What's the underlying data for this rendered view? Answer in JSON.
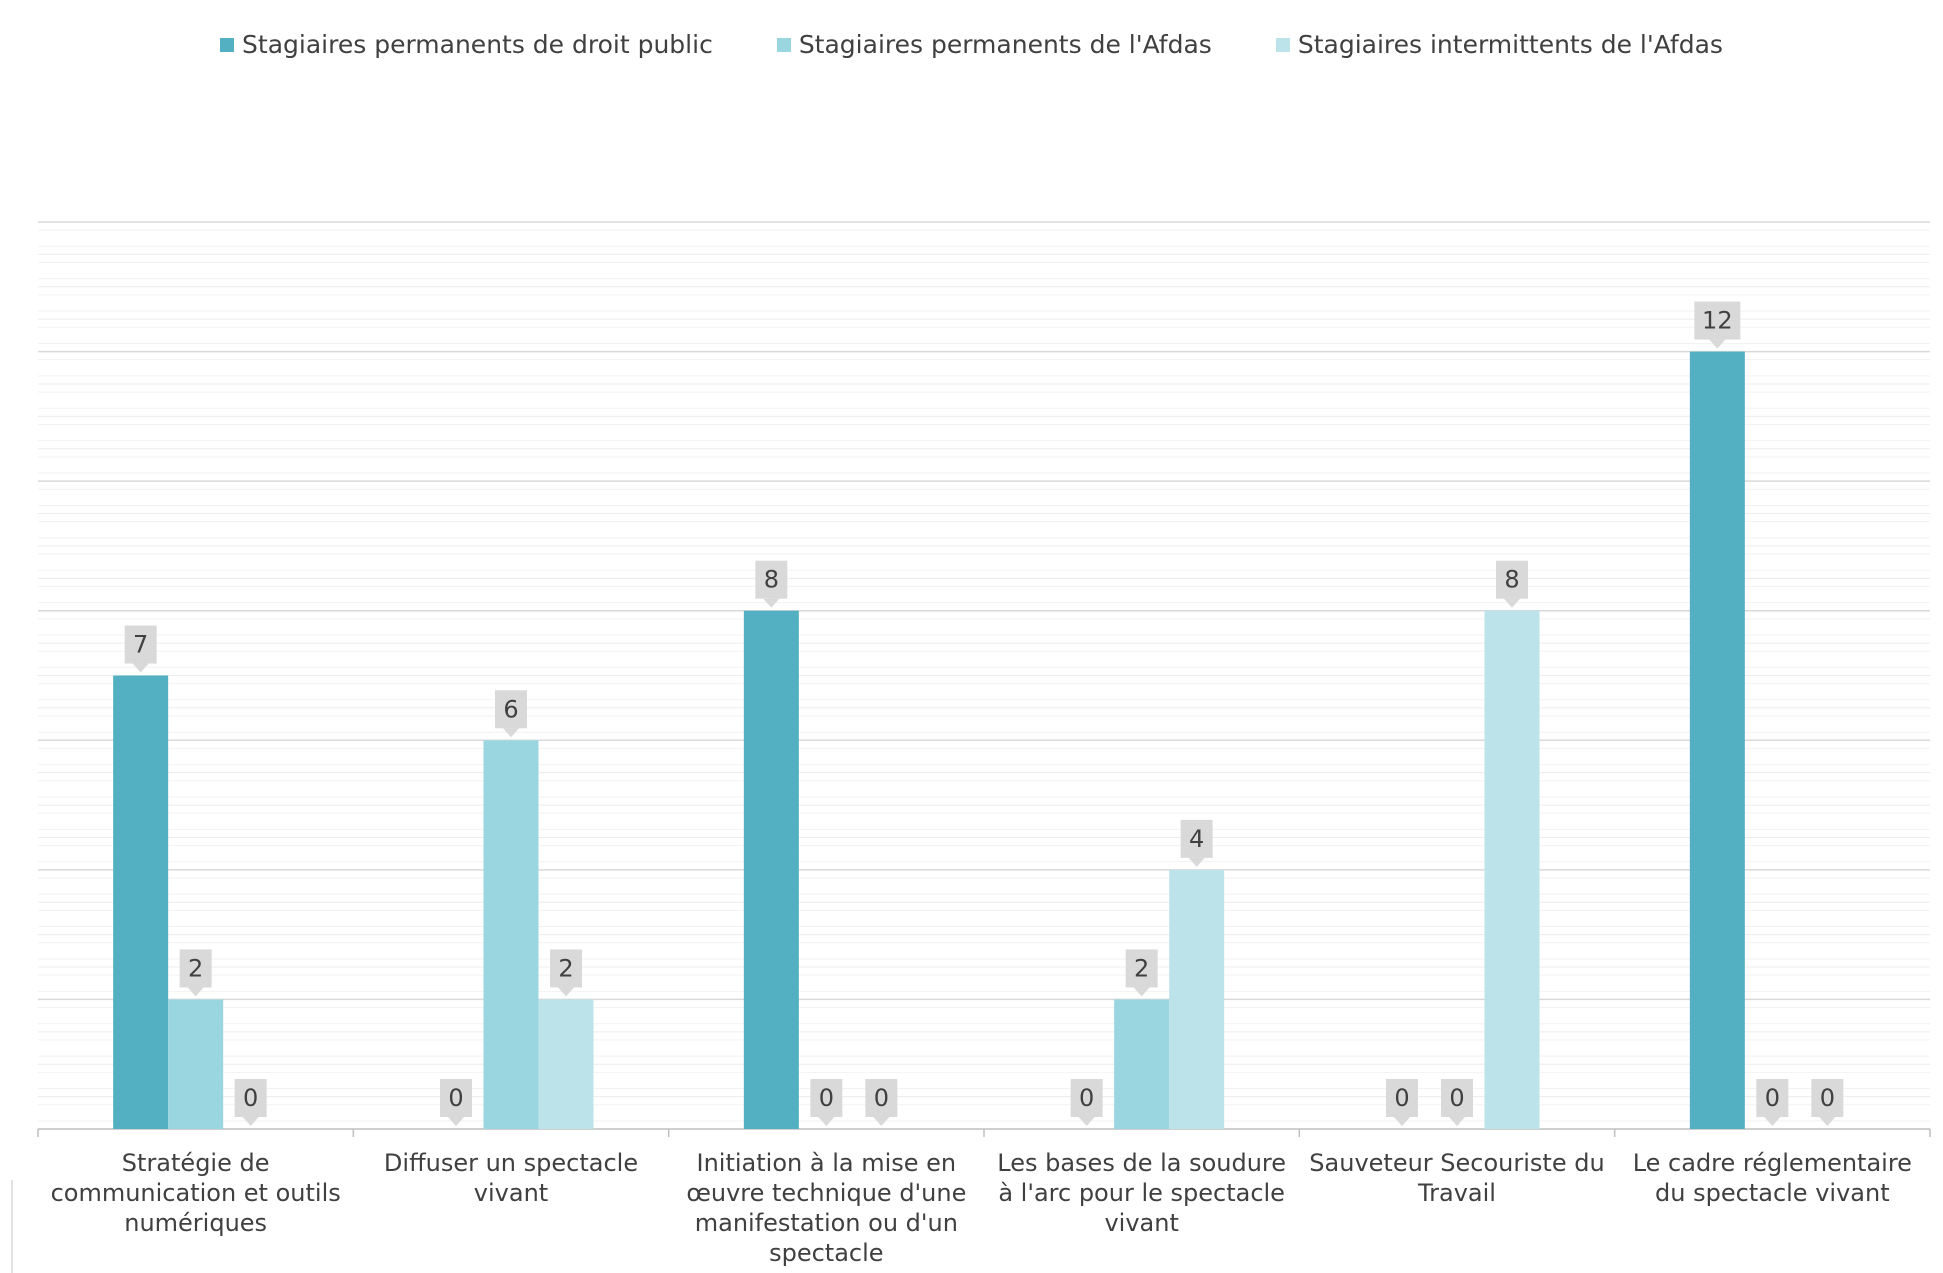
{
  "chart_data": {
    "type": "bar",
    "title": "",
    "xlabel": "",
    "ylabel": "",
    "ylim": [
      0,
      14
    ],
    "grid": true,
    "legend_position": "top",
    "categories": [
      "Stratégie de communication et outils numériques",
      "Diffuser un spectacle vivant",
      "Initiation à la mise en œuvre technique d'une manifestation ou d'un spectacle",
      "Les bases de la soudure à l'arc pour le spectacle vivant",
      "Sauveteur Secouriste du Travail",
      "Le cadre réglementaire du spectacle vivant"
    ],
    "series": [
      {
        "name": "Stagiaires permanents de droit public",
        "color": "#52b0c2",
        "values": [
          7,
          0,
          8,
          0,
          0,
          12
        ]
      },
      {
        "name": "Stagiaires permanents de l'Afdas",
        "color": "#9ad6e0",
        "values": [
          2,
          6,
          0,
          2,
          0,
          0
        ]
      },
      {
        "name": "Stagiaires intermittents de l'Afdas",
        "color": "#bde3ea",
        "values": [
          0,
          2,
          0,
          4,
          8,
          0
        ]
      }
    ]
  },
  "colors": {
    "label_box": "#d9d9d9",
    "gridline": "#d9d9d9",
    "axis": "#bfbfbf"
  }
}
